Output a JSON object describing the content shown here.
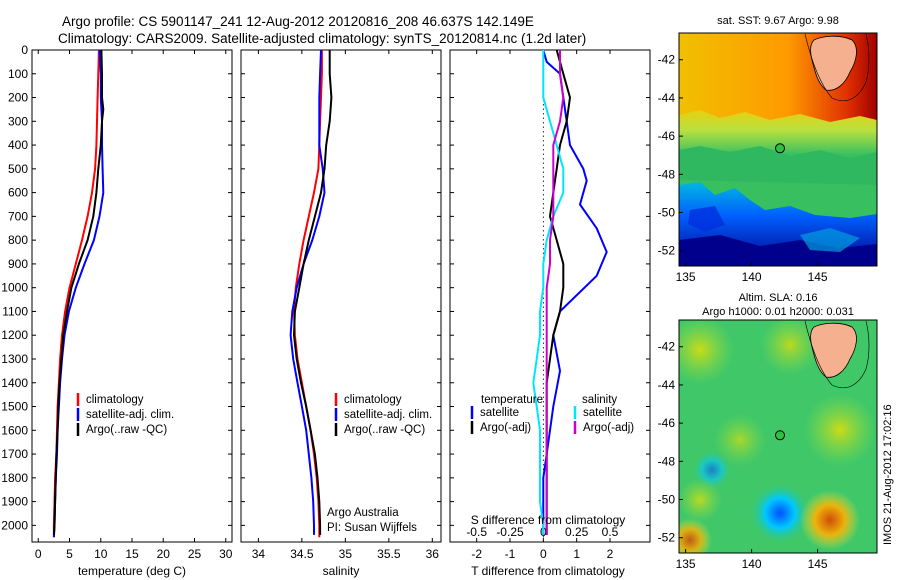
{
  "header": {
    "title_line1": "Argo profile: CS 5901147_241 12-Aug-2012 20120816_208 46.637S 142.149E",
    "title_line2": "Climatology: CARS2009. Satellite-adjusted climatology: synTS_20120814.nc (1.2d later)"
  },
  "stamp": "IMOS 21-Aug-2012 17:02:16",
  "colors": {
    "climatology": "#ff0000",
    "satellite": "#0000ff",
    "argo": "#000000",
    "satellite_t": "#0000ff",
    "satellite_s": "#00e5ff",
    "argo_s": "#cc00cc"
  },
  "chart_data": [
    {
      "id": "temperature",
      "type": "line",
      "xlabel": "temperature (deg C)",
      "ylabel": "",
      "xlim": [
        -1,
        31
      ],
      "ylim": [
        2070,
        0
      ],
      "xticks": [
        0,
        5,
        10,
        15,
        20,
        25,
        30
      ],
      "yticks": [
        0,
        100,
        200,
        300,
        400,
        500,
        600,
        700,
        800,
        900,
        1000,
        1100,
        1200,
        1300,
        1400,
        1500,
        1600,
        1700,
        1800,
        1900,
        2000
      ],
      "legend": [
        "climatology",
        "satellite-adj. clim.",
        "Argo(..raw -QC)"
      ],
      "series": [
        {
          "name": "climatology",
          "color_key": "climatology",
          "points": [
            [
              9.7,
              0
            ],
            [
              9.6,
              100
            ],
            [
              9.5,
              200
            ],
            [
              9.4,
              300
            ],
            [
              9.3,
              400
            ],
            [
              9.1,
              500
            ],
            [
              8.6,
              600
            ],
            [
              7.9,
              700
            ],
            [
              7.0,
              800
            ],
            [
              6.0,
              900
            ],
            [
              5.0,
              1000
            ],
            [
              4.3,
              1100
            ],
            [
              3.8,
              1200
            ],
            [
              3.5,
              1300
            ],
            [
              3.3,
              1400
            ],
            [
              3.1,
              1500
            ],
            [
              3.0,
              1600
            ],
            [
              2.9,
              1700
            ],
            [
              2.7,
              1800
            ],
            [
              2.6,
              1900
            ],
            [
              2.5,
              2000
            ],
            [
              2.5,
              2050
            ]
          ]
        },
        {
          "name": "satellite-adj. clim.",
          "color_key": "satellite",
          "points": [
            [
              9.8,
              0
            ],
            [
              10.0,
              100
            ],
            [
              10.0,
              200
            ],
            [
              10.2,
              300
            ],
            [
              10.2,
              400
            ],
            [
              10.3,
              500
            ],
            [
              10.4,
              600
            ],
            [
              9.8,
              700
            ],
            [
              8.9,
              800
            ],
            [
              7.4,
              900
            ],
            [
              6.0,
              1000
            ],
            [
              4.9,
              1100
            ],
            [
              4.2,
              1200
            ],
            [
              3.8,
              1300
            ],
            [
              3.5,
              1400
            ],
            [
              3.3,
              1500
            ],
            [
              3.1,
              1600
            ],
            [
              3.0,
              1700
            ],
            [
              2.8,
              1800
            ],
            [
              2.7,
              1900
            ],
            [
              2.6,
              2000
            ],
            [
              2.5,
              2050
            ]
          ]
        },
        {
          "name": "Argo(..raw -QC)",
          "color_key": "argo",
          "points": [
            [
              10.1,
              0
            ],
            [
              10.2,
              100
            ],
            [
              10.2,
              200
            ],
            [
              10.4,
              250
            ],
            [
              10.2,
              300
            ],
            [
              10.0,
              400
            ],
            [
              9.6,
              500
            ],
            [
              9.3,
              600
            ],
            [
              8.8,
              700
            ],
            [
              7.9,
              800
            ],
            [
              6.5,
              900
            ],
            [
              5.3,
              1000
            ],
            [
              4.6,
              1100
            ],
            [
              4.0,
              1200
            ],
            [
              3.7,
              1300
            ],
            [
              3.4,
              1400
            ],
            [
              3.2,
              1500
            ],
            [
              3.1,
              1600
            ],
            [
              2.9,
              1700
            ],
            [
              2.8,
              1800
            ],
            [
              2.7,
              1900
            ],
            [
              2.6,
              2000
            ],
            [
              2.5,
              2040
            ]
          ]
        }
      ]
    },
    {
      "id": "salinity",
      "type": "line",
      "xlabel": "salinity",
      "ylabel": "",
      "xlim": [
        33.8,
        36.1
      ],
      "ylim": [
        2070,
        0
      ],
      "xticks": [
        34,
        34.5,
        35,
        35.5,
        36
      ],
      "legend": [
        "climatology",
        "satellite-adj. clim.",
        "Argo(..raw -QC)"
      ],
      "annotation": [
        "Argo Australia",
        "PI: Susan Wijffels"
      ],
      "series": [
        {
          "name": "climatology",
          "color_key": "climatology",
          "points": [
            [
              34.73,
              0
            ],
            [
              34.73,
              100
            ],
            [
              34.72,
              200
            ],
            [
              34.71,
              300
            ],
            [
              34.7,
              400
            ],
            [
              34.69,
              500
            ],
            [
              34.64,
              600
            ],
            [
              34.58,
              700
            ],
            [
              34.52,
              800
            ],
            [
              34.47,
              900
            ],
            [
              34.43,
              1000
            ],
            [
              34.41,
              1100
            ],
            [
              34.42,
              1200
            ],
            [
              34.45,
              1300
            ],
            [
              34.5,
              1400
            ],
            [
              34.55,
              1500
            ],
            [
              34.6,
              1600
            ],
            [
              34.64,
              1700
            ],
            [
              34.67,
              1800
            ],
            [
              34.69,
              1900
            ],
            [
              34.7,
              2000
            ],
            [
              34.7,
              2050
            ]
          ]
        },
        {
          "name": "satellite-adj. clim.",
          "color_key": "satellite",
          "points": [
            [
              34.72,
              0
            ],
            [
              34.71,
              100
            ],
            [
              34.7,
              200
            ],
            [
              34.7,
              300
            ],
            [
              34.7,
              400
            ],
            [
              34.74,
              500
            ],
            [
              34.76,
              600
            ],
            [
              34.7,
              700
            ],
            [
              34.62,
              800
            ],
            [
              34.52,
              900
            ],
            [
              34.44,
              1000
            ],
            [
              34.39,
              1100
            ],
            [
              34.37,
              1200
            ],
            [
              34.4,
              1300
            ],
            [
              34.45,
              1400
            ],
            [
              34.5,
              1500
            ],
            [
              34.55,
              1600
            ],
            [
              34.58,
              1700
            ],
            [
              34.61,
              1800
            ],
            [
              34.63,
              1900
            ],
            [
              34.64,
              2000
            ],
            [
              34.64,
              2040
            ]
          ]
        },
        {
          "name": "Argo(..raw -QC)",
          "color_key": "argo",
          "points": [
            [
              34.82,
              0
            ],
            [
              34.82,
              100
            ],
            [
              34.84,
              200
            ],
            [
              34.82,
              300
            ],
            [
              34.78,
              400
            ],
            [
              34.76,
              500
            ],
            [
              34.72,
              600
            ],
            [
              34.65,
              700
            ],
            [
              34.58,
              800
            ],
            [
              34.52,
              900
            ],
            [
              34.47,
              1000
            ],
            [
              34.42,
              1100
            ],
            [
              34.41,
              1200
            ],
            [
              34.44,
              1300
            ],
            [
              34.49,
              1400
            ],
            [
              34.55,
              1500
            ],
            [
              34.6,
              1600
            ],
            [
              34.65,
              1700
            ],
            [
              34.68,
              1800
            ],
            [
              34.7,
              1900
            ],
            [
              34.71,
              2000
            ],
            [
              34.71,
              2040
            ]
          ]
        }
      ]
    },
    {
      "id": "differences",
      "type": "line",
      "xlabel": "T difference from climatology",
      "secondary_xlabel": "S difference from climatology",
      "xlim": [
        -2.8,
        3.2
      ],
      "ylim": [
        2070,
        0
      ],
      "xticks": [
        -2,
        -1,
        0,
        1,
        2
      ],
      "secondary_xticks": [
        "-0.5",
        "-0.25",
        "0",
        "0.25",
        "0.5"
      ],
      "secondary_xtick_pos": [
        -2,
        -1,
        0,
        1,
        2
      ],
      "legend_headers": [
        "temperature",
        "salinity"
      ],
      "legend": [
        "satellite",
        "Argo(-adj)",
        "satellite",
        "Argo(-adj)"
      ],
      "series": [
        {
          "name": "satellite",
          "group": "temperature",
          "color_key": "satellite_t",
          "points": [
            [
              0.0,
              0
            ],
            [
              0.1,
              50
            ],
            [
              0.5,
              100
            ],
            [
              0.6,
              200
            ],
            [
              0.7,
              300
            ],
            [
              0.8,
              400
            ],
            [
              1.2,
              500
            ],
            [
              1.3,
              550
            ],
            [
              1.1,
              650
            ],
            [
              1.6,
              750
            ],
            [
              1.9,
              850
            ],
            [
              1.6,
              950
            ],
            [
              0.5,
              1100
            ],
            [
              0.3,
              1200
            ],
            [
              0.5,
              1350
            ],
            [
              0.3,
              1500
            ],
            [
              0.2,
              1600
            ],
            [
              0.1,
              1700
            ],
            [
              0.0,
              1800
            ],
            [
              0.0,
              1900
            ],
            [
              0.0,
              2000
            ],
            [
              0.0,
              2040
            ]
          ]
        },
        {
          "name": "Argo(-adj)",
          "group": "temperature",
          "color_key": "argo",
          "points": [
            [
              0.4,
              0
            ],
            [
              0.6,
              100
            ],
            [
              0.8,
              200
            ],
            [
              0.7,
              300
            ],
            [
              0.5,
              400
            ],
            [
              0.4,
              500
            ],
            [
              0.3,
              600
            ],
            [
              0.2,
              700
            ],
            [
              0.4,
              800
            ],
            [
              0.6,
              900
            ],
            [
              0.6,
              1000
            ],
            [
              0.5,
              1100
            ],
            [
              0.3,
              1200
            ],
            [
              0.2,
              1300
            ],
            [
              0.1,
              1400
            ],
            [
              0.1,
              1500
            ],
            [
              0.1,
              1600
            ],
            [
              0.1,
              1700
            ],
            [
              0.1,
              1800
            ],
            [
              0.1,
              1900
            ],
            [
              0.1,
              2000
            ],
            [
              0.1,
              2040
            ]
          ]
        },
        {
          "name": "satellite",
          "group": "salinity",
          "color_key": "satellite_s",
          "points": [
            [
              0.0,
              0
            ],
            [
              0.0,
              100
            ],
            [
              0.0,
              200
            ],
            [
              0.2,
              300
            ],
            [
              0.4,
              400
            ],
            [
              0.6,
              500
            ],
            [
              0.6,
              600
            ],
            [
              0.3,
              700
            ],
            [
              0.1,
              800
            ],
            [
              0.0,
              900
            ],
            [
              0.0,
              1000
            ],
            [
              -0.1,
              1100
            ],
            [
              -0.1,
              1200
            ],
            [
              -0.2,
              1300
            ],
            [
              -0.3,
              1400
            ],
            [
              -0.2,
              1500
            ],
            [
              -0.1,
              1600
            ],
            [
              -0.1,
              1700
            ],
            [
              -0.1,
              1800
            ],
            [
              -0.1,
              1900
            ],
            [
              0.0,
              2000
            ],
            [
              0.0,
              2040
            ]
          ]
        },
        {
          "name": "Argo(-adj)",
          "group": "salinity",
          "color_key": "argo_s",
          "points": [
            [
              0.5,
              0
            ],
            [
              0.5,
              100
            ],
            [
              0.6,
              200
            ],
            [
              0.5,
              300
            ],
            [
              0.3,
              400
            ],
            [
              0.3,
              500
            ],
            [
              0.3,
              600
            ],
            [
              0.3,
              700
            ],
            [
              0.2,
              800
            ],
            [
              0.2,
              900
            ],
            [
              0.1,
              1000
            ],
            [
              0.1,
              1100
            ],
            [
              0.1,
              1200
            ],
            [
              0.1,
              1300
            ],
            [
              0.1,
              1400
            ],
            [
              0.1,
              1500
            ],
            [
              0.1,
              1600
            ],
            [
              0.1,
              1700
            ],
            [
              0.1,
              1800
            ],
            [
              0.1,
              1900
            ],
            [
              0.1,
              2000
            ],
            [
              0.1,
              2040
            ]
          ]
        }
      ]
    },
    {
      "id": "sst_map",
      "type": "heatmap",
      "title": "sat. SST: 9.67 Argo: 9.98",
      "xlim": [
        134.5,
        149.5
      ],
      "ylim": [
        -52.8,
        -40.6
      ],
      "xticks": [
        135,
        140,
        145
      ],
      "yticks": [
        -42,
        -44,
        -46,
        -48,
        -50,
        -52
      ],
      "marker": [
        142.149,
        -46.637
      ]
    },
    {
      "id": "sla_map",
      "type": "heatmap",
      "title": "Altim. SLA: 0.16",
      "subtitle": "Argo h1000: 0.01 h2000: 0.031",
      "xlim": [
        134.5,
        149.5
      ],
      "ylim": [
        -52.8,
        -40.6
      ],
      "xticks": [
        135,
        140,
        145
      ],
      "yticks": [
        -42,
        -44,
        -46,
        -48,
        -50,
        -52
      ],
      "marker": [
        142.149,
        -46.637
      ]
    }
  ]
}
